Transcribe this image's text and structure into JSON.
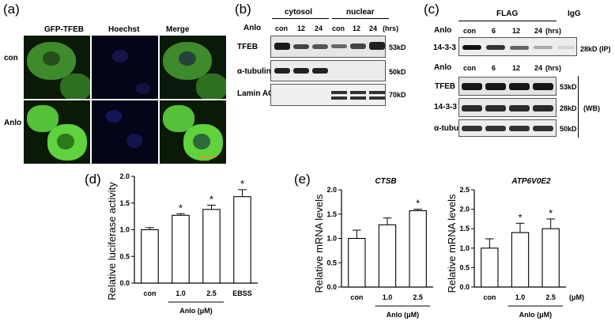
{
  "panel_a": {
    "letter": "(a)",
    "columns": [
      "GFP-TFEB",
      "Hoechst",
      "Merge"
    ],
    "rows": [
      "con",
      "Anlo"
    ],
    "scale_bar": "20 μm"
  },
  "panel_b": {
    "letter": "(b)",
    "fractions": [
      "cytosol",
      "nuclear"
    ],
    "treatment_label": "Anlo",
    "lanes": [
      "con",
      "12",
      "24",
      "con",
      "12",
      "24"
    ],
    "time_unit": "(hrs)",
    "blots": [
      {
        "name": "TFEB",
        "size": "53kD"
      },
      {
        "name": "α-tubulin",
        "size": "50kD"
      },
      {
        "name": "Lamin AC",
        "size": "70kD"
      }
    ]
  },
  "panel_c": {
    "letter": "(c)",
    "flag_label": "FLAG",
    "igg_label": "IgG",
    "treatment_label": "Anlo",
    "lanes": [
      "con",
      "6",
      "12",
      "24"
    ],
    "time_unit": "(hrs)",
    "ip_blot": {
      "name": "14-3-3",
      "size": "28kD",
      "tag": "(IP)"
    },
    "wb_blots": [
      {
        "name": "TFEB",
        "size": "53kD"
      },
      {
        "name": "14-3-3",
        "size": "28kD"
      },
      {
        "name": "α-tubulin",
        "size": "50kD"
      }
    ],
    "wb_tag": "(WB)"
  },
  "panel_d": {
    "letter": "(d)",
    "chart_data": {
      "type": "bar",
      "categories": [
        "con",
        "1.0",
        "2.5",
        "EBSS"
      ],
      "values": [
        1.0,
        1.27,
        1.38,
        1.62
      ],
      "errors": [
        0.04,
        0.03,
        0.08,
        0.13
      ],
      "significant": [
        false,
        true,
        true,
        true
      ],
      "sig_marker": "*",
      "ylabel": "Relative luciferase activity",
      "group_label": "Anlo (μM)",
      "ylim": [
        0,
        2.0
      ],
      "yticks": [
        "0.0",
        "0.5",
        "1.0",
        "1.5",
        "2.0"
      ]
    }
  },
  "panel_e": {
    "letter": "(e)",
    "chart_data": [
      {
        "type": "bar",
        "title": "CTSB",
        "categories": [
          "con",
          "1.0",
          "2.5"
        ],
        "values": [
          1.0,
          1.28,
          1.57
        ],
        "errors": [
          0.17,
          0.14,
          0.03
        ],
        "significant": [
          false,
          false,
          true
        ],
        "sig_marker": "*",
        "ylabel": "Relative mRNA levels",
        "group_label": "Anlo (μM)",
        "ylim": [
          0,
          2.0
        ],
        "yticks": [
          "0.0",
          "0.5",
          "1.0",
          "1.5",
          "2.0"
        ]
      },
      {
        "type": "bar",
        "title": "ATP6V0E2",
        "categories": [
          "con",
          "1.0",
          "2.5"
        ],
        "values": [
          1.0,
          1.4,
          1.5
        ],
        "errors": [
          0.24,
          0.24,
          0.25
        ],
        "significant": [
          false,
          true,
          true
        ],
        "sig_marker": "*",
        "unit": "(μM)",
        "ylabel": "Relative mRNA levels",
        "group_label": "Anlo (μM)",
        "ylim": [
          0,
          2.5
        ],
        "yticks": [
          "0.0",
          "0.5",
          "1.0",
          "1.5",
          "2.0",
          "2.5"
        ]
      }
    ]
  }
}
